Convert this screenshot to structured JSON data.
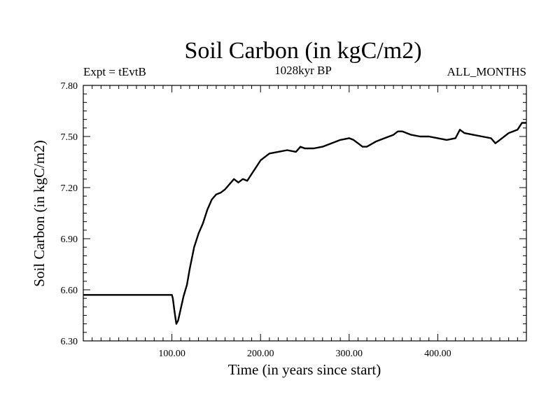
{
  "chart_data": {
    "type": "line",
    "title": "Soil Carbon (in kgC/m2)",
    "subtitle": "1028kyr BP",
    "left_label": "Expt = tEvtB",
    "right_label": "ALL_MONTHS",
    "xlabel": "Time (in years since start)",
    "ylabel": "Soil Carbon (in kgC/m2)",
    "xlim": [
      0,
      500
    ],
    "ylim": [
      6.3,
      7.8
    ],
    "x_ticks": [
      100,
      200,
      300,
      400
    ],
    "x_tick_labels": [
      "100.00",
      "200.00",
      "300.00",
      "400.00"
    ],
    "y_ticks": [
      6.3,
      6.6,
      6.9,
      7.2,
      7.5,
      7.8
    ],
    "y_tick_labels": [
      "6.30",
      "6.60",
      "6.90",
      "7.20",
      "7.50",
      "7.80"
    ],
    "grid": false,
    "series": [
      {
        "name": "Soil Carbon",
        "color": "#000000",
        "x": [
          0,
          100,
          101,
          103,
          105,
          107,
          110,
          113,
          117,
          120,
          125,
          130,
          135,
          140,
          145,
          150,
          155,
          160,
          165,
          170,
          175,
          180,
          185,
          190,
          195,
          200,
          205,
          210,
          220,
          230,
          240,
          245,
          250,
          260,
          270,
          280,
          290,
          300,
          305,
          310,
          315,
          320,
          330,
          340,
          350,
          355,
          360,
          370,
          380,
          390,
          400,
          410,
          420,
          425,
          430,
          440,
          450,
          460,
          465,
          470,
          480,
          490,
          495,
          500
        ],
        "values": [
          6.57,
          6.57,
          6.55,
          6.47,
          6.4,
          6.42,
          6.49,
          6.56,
          6.63,
          6.72,
          6.85,
          6.93,
          6.99,
          7.07,
          7.13,
          7.16,
          7.17,
          7.19,
          7.22,
          7.25,
          7.23,
          7.25,
          7.24,
          7.28,
          7.32,
          7.36,
          7.38,
          7.4,
          7.41,
          7.42,
          7.41,
          7.44,
          7.43,
          7.43,
          7.44,
          7.46,
          7.48,
          7.49,
          7.48,
          7.46,
          7.44,
          7.44,
          7.47,
          7.49,
          7.51,
          7.53,
          7.53,
          7.51,
          7.5,
          7.5,
          7.49,
          7.48,
          7.49,
          7.54,
          7.52,
          7.51,
          7.5,
          7.49,
          7.46,
          7.48,
          7.52,
          7.54,
          7.58,
          7.58
        ]
      }
    ]
  }
}
